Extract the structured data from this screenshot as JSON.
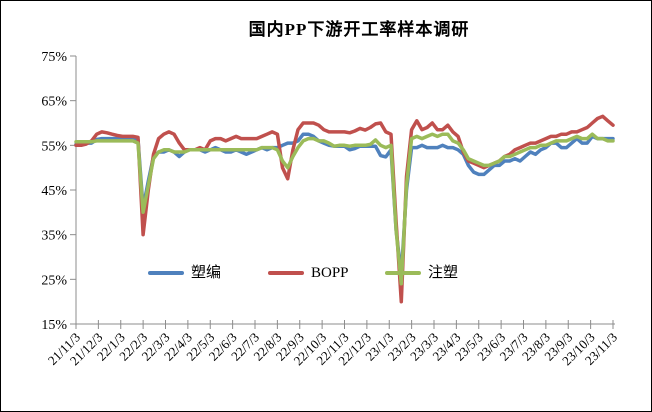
{
  "window": {
    "background": "#FFFFFF",
    "border_color": "#000000"
  },
  "chart_data": {
    "type": "line",
    "title": "国内PP下游开工率样本调研",
    "xlabel": "",
    "ylabel": "",
    "ylim": [
      15,
      75
    ],
    "ytick_step": 10,
    "ytick_labels": [
      "75%",
      "65%",
      "55%",
      "45%",
      "35%",
      "25%",
      "15%"
    ],
    "grid": false,
    "legend_position": "inside-bottom-center",
    "axis_color": "#8c8c8c",
    "text_color": "#000000",
    "categories": [
      "21/11/3",
      "21/12/3",
      "22/1/3",
      "22/2/3",
      "22/3/3",
      "22/4/3",
      "22/5/3",
      "22/6/3",
      "22/7/3",
      "22/8/3",
      "22/9/3",
      "22/10/3",
      "22/11/3",
      "22/12/3",
      "23/1/3",
      "23/2/3",
      "23/3/3",
      "23/4/3",
      "23/5/3",
      "23/6/3",
      "23/7/3",
      "23/8/3",
      "23/9/3",
      "23/10/3",
      "23/11/3"
    ],
    "sampling": "weekly, ~105 points from 21/11/3 to 23/11/3 (values in %, estimated from plot)",
    "series": [
      {
        "name": "塑编",
        "color": "#4F81BD",
        "values": [
          55.2,
          55.5,
          55.5,
          55.5,
          56.3,
          56.5,
          56.5,
          56.5,
          56.5,
          56.5,
          56.5,
          56.5,
          56.3,
          41,
          47,
          52.5,
          53.5,
          53.5,
          54,
          53.5,
          52.5,
          53.5,
          54,
          54,
          54,
          53.5,
          54,
          54.5,
          54,
          53.5,
          53.5,
          54,
          53.5,
          53,
          53.5,
          54,
          54.5,
          54,
          54.5,
          54.5,
          55,
          55.5,
          55.5,
          56,
          57.5,
          57.5,
          57,
          56,
          55.5,
          55,
          54.8,
          54.8,
          54.8,
          54,
          54.3,
          54.8,
          54.8,
          54.8,
          54.8,
          52.7,
          52.4,
          54,
          36,
          26,
          45,
          54.5,
          54.5,
          55,
          54.5,
          54.5,
          54.5,
          55,
          54.5,
          54.5,
          54,
          53,
          50.5,
          49,
          48.5,
          48.5,
          49.5,
          50.5,
          50.5,
          51.5,
          51.5,
          52,
          51.5,
          52.5,
          53.5,
          53,
          54,
          54.5,
          55.5,
          55.5,
          54.5,
          54.5,
          55.5,
          56.5,
          55.5,
          55.5,
          57,
          56.5,
          56.5,
          56.5,
          56.5
        ]
      },
      {
        "name": "BOPP",
        "color": "#C0504D",
        "values": [
          55,
          55,
          55.3,
          56,
          57.5,
          58,
          57.8,
          57.5,
          57.2,
          57,
          57,
          57,
          56.8,
          35,
          45,
          53,
          56.5,
          57.5,
          58,
          57.5,
          55.5,
          54,
          54,
          54,
          54.5,
          54,
          56,
          56.5,
          56.5,
          56,
          56.5,
          57,
          56.5,
          56.5,
          56.5,
          56.5,
          57,
          57.5,
          58,
          57.5,
          50,
          47.5,
          54,
          58.5,
          60,
          60,
          60,
          59.5,
          58.5,
          58,
          58,
          58,
          58,
          57.8,
          58.2,
          58.8,
          58.4,
          59,
          59.8,
          60,
          58,
          57.5,
          38,
          20,
          48,
          58.5,
          60.5,
          58.5,
          59,
          60,
          58.5,
          58.5,
          59.5,
          58,
          57,
          53.5,
          51.5,
          51,
          50.5,
          50,
          50.5,
          51,
          51.5,
          52.5,
          53,
          54,
          54.5,
          55,
          55.5,
          55.5,
          56,
          56.5,
          57,
          57,
          57.5,
          57.5,
          58,
          58,
          58.5,
          59,
          60,
          61,
          61.5,
          60.5,
          59.5
        ]
      },
      {
        "name": "注塑",
        "color": "#9BBB59",
        "values": [
          55.8,
          55.8,
          55.8,
          55.8,
          56,
          56,
          56,
          56,
          56,
          56,
          56,
          56,
          55.5,
          40,
          46,
          52,
          53.5,
          54,
          54,
          53.5,
          53.5,
          53.5,
          54,
          54,
          54,
          54,
          54,
          54,
          54,
          54,
          54,
          54,
          54,
          54,
          54,
          54,
          54.5,
          54.5,
          54.5,
          54,
          51.5,
          50,
          52.5,
          54.5,
          56,
          56.5,
          56.5,
          56,
          56,
          55.5,
          54.8,
          55,
          55,
          54.8,
          55,
          55,
          55,
          55.2,
          56.2,
          55,
          54.5,
          55,
          36,
          24,
          46,
          56.5,
          57,
          56.5,
          57,
          57.5,
          57,
          57.5,
          57.5,
          56,
          55.5,
          54,
          52,
          51.5,
          51,
          50.5,
          50.5,
          51,
          51.5,
          52.5,
          52.5,
          53,
          53.5,
          54,
          54.5,
          54.5,
          55,
          55,
          55.5,
          56,
          56,
          56,
          56.5,
          57,
          56.5,
          56.5,
          57.5,
          56.5,
          56.5,
          56,
          56
        ]
      }
    ]
  }
}
